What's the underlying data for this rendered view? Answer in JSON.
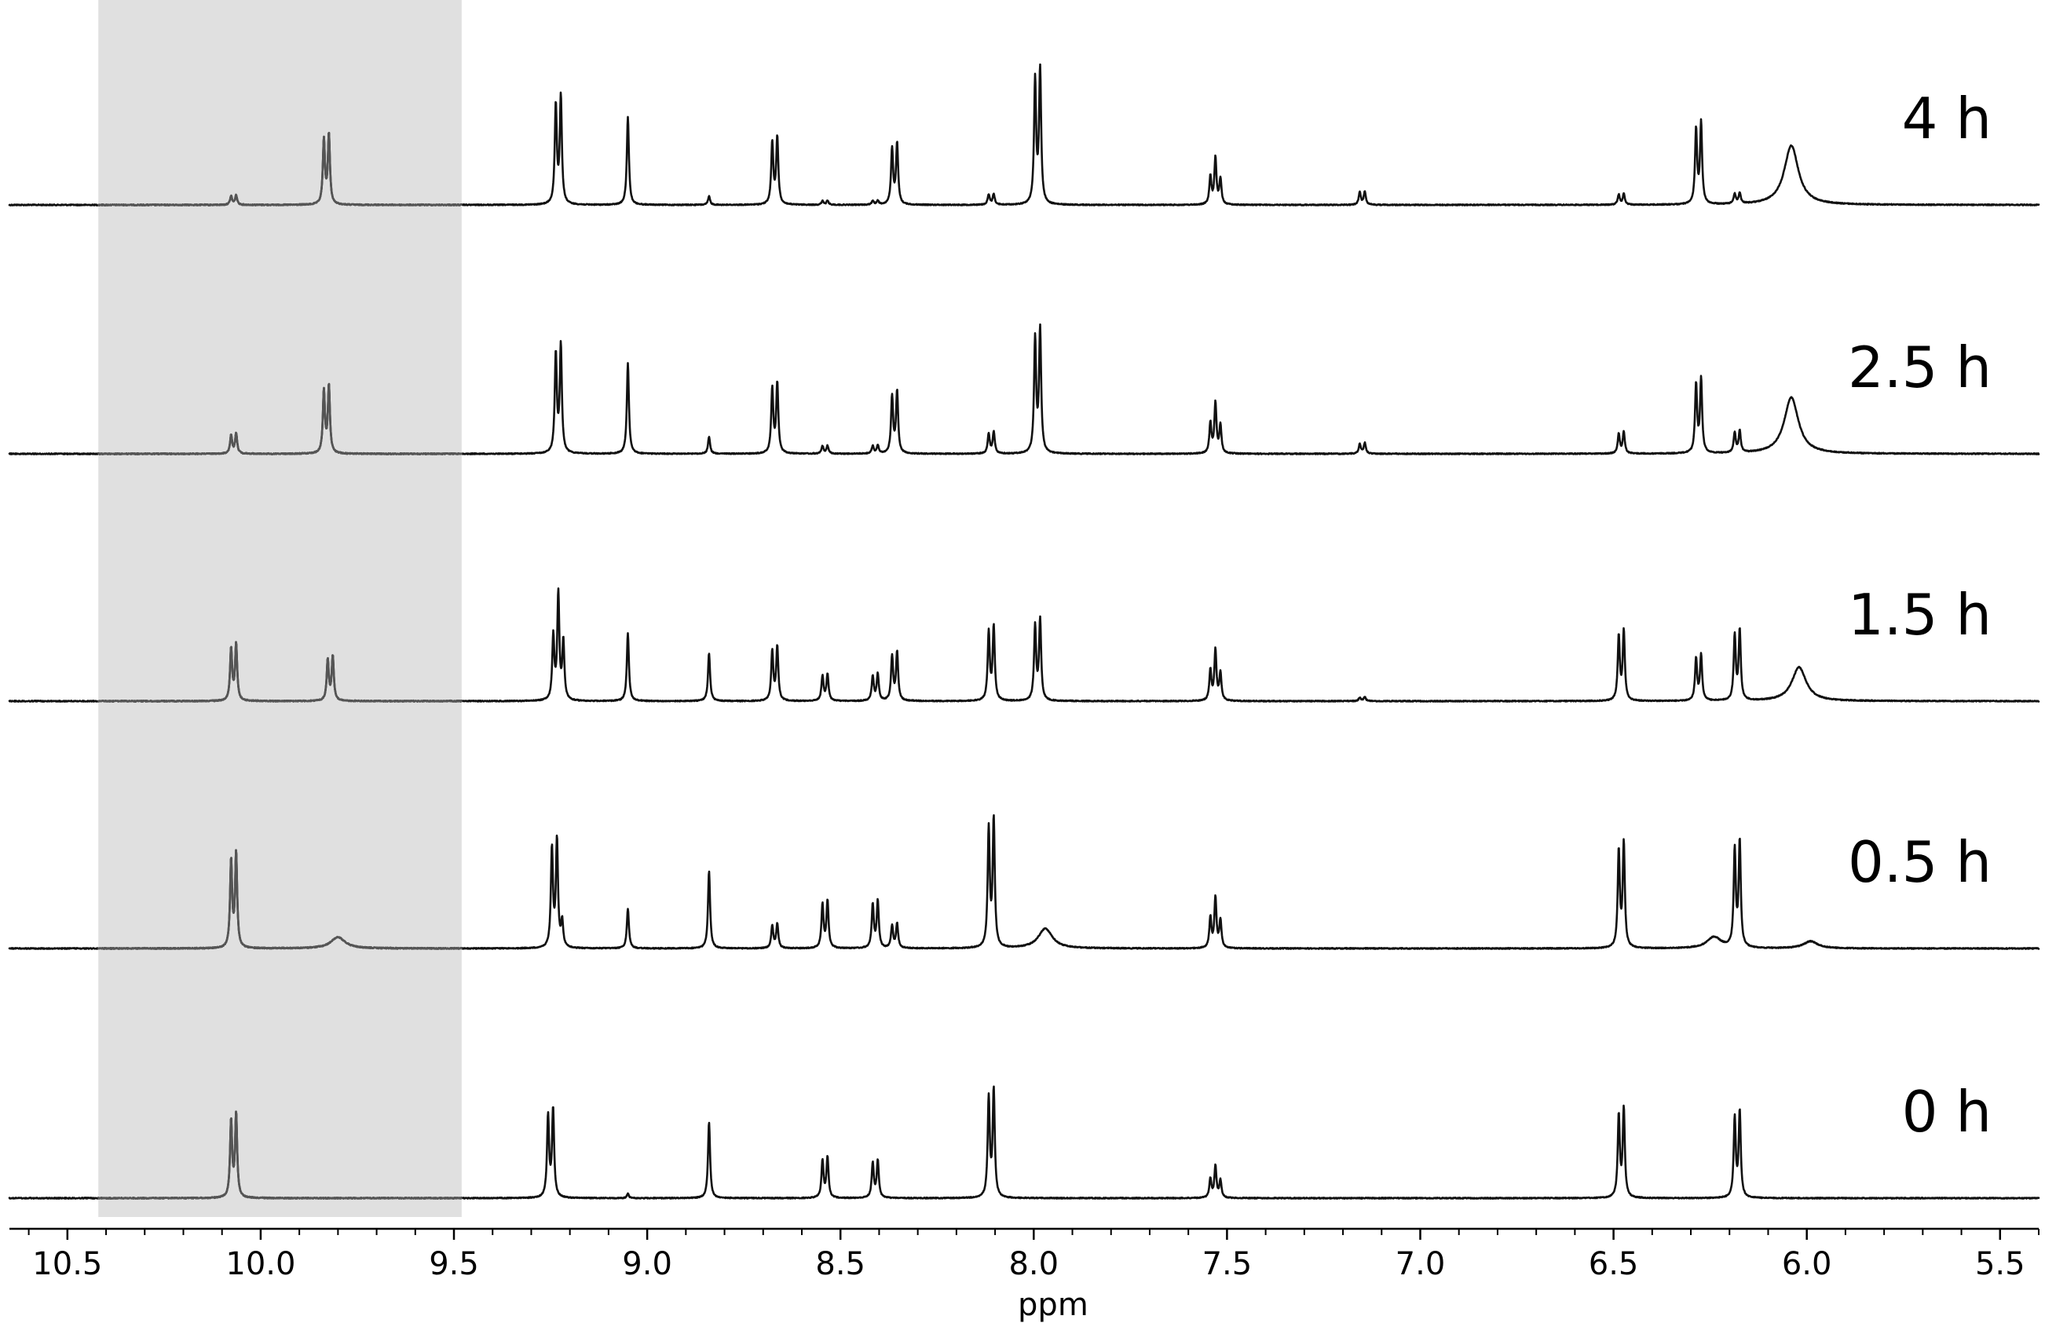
{
  "chart_data": {
    "type": "line",
    "title": "",
    "xlabel": "ppm",
    "ylabel": "",
    "xlim": [
      10.65,
      5.4
    ],
    "x_reversed": true,
    "x_ticks": [
      10.5,
      10.0,
      9.5,
      9.0,
      8.5,
      8.0,
      7.5,
      7.0,
      6.5,
      6.0,
      5.5
    ],
    "x_tick_labels": [
      "10.5",
      "10.0",
      "9.5",
      "9.0",
      "8.5",
      "8.0",
      "7.5",
      "7.0",
      "6.5",
      "6.0",
      "5.5"
    ],
    "grid": false,
    "legend": "none",
    "highlight_region": {
      "from_ppm": 10.42,
      "to_ppm": 9.48,
      "color": "#e0e0e0"
    },
    "trace_color": "#111111",
    "highlight_trace_color": "#555555",
    "series": [
      {
        "name": "4 h",
        "peaks": [
          {
            "ppm": 10.07,
            "height": 0.07,
            "type": "doublet"
          },
          {
            "ppm": 9.83,
            "height": 0.52,
            "type": "doublet"
          },
          {
            "ppm": 9.23,
            "height": 0.8,
            "type": "doublet"
          },
          {
            "ppm": 9.05,
            "height": 0.62,
            "type": "singlet"
          },
          {
            "ppm": 8.84,
            "height": 0.06,
            "type": "singlet"
          },
          {
            "ppm": 8.67,
            "height": 0.5,
            "type": "doublet"
          },
          {
            "ppm": 8.54,
            "height": 0.03,
            "type": "doublet"
          },
          {
            "ppm": 8.41,
            "height": 0.03,
            "type": "doublet"
          },
          {
            "ppm": 8.36,
            "height": 0.45,
            "type": "doublet"
          },
          {
            "ppm": 8.11,
            "height": 0.08,
            "type": "doublet"
          },
          {
            "ppm": 7.99,
            "height": 1.0,
            "type": "doublet"
          },
          {
            "ppm": 7.53,
            "height": 0.35,
            "type": "triplet"
          },
          {
            "ppm": 7.15,
            "height": 0.1,
            "type": "doublet"
          },
          {
            "ppm": 6.48,
            "height": 0.08,
            "type": "doublet"
          },
          {
            "ppm": 6.28,
            "height": 0.6,
            "type": "doublet"
          },
          {
            "ppm": 6.18,
            "height": 0.08,
            "type": "doublet"
          },
          {
            "ppm": 6.04,
            "height": 0.42,
            "type": "broad"
          }
        ]
      },
      {
        "name": "2.5 h",
        "peaks": [
          {
            "ppm": 10.07,
            "height": 0.15,
            "type": "doublet"
          },
          {
            "ppm": 9.83,
            "height": 0.5,
            "type": "doublet"
          },
          {
            "ppm": 9.23,
            "height": 0.8,
            "type": "doublet"
          },
          {
            "ppm": 9.05,
            "height": 0.64,
            "type": "singlet"
          },
          {
            "ppm": 8.84,
            "height": 0.12,
            "type": "singlet"
          },
          {
            "ppm": 8.67,
            "height": 0.52,
            "type": "doublet"
          },
          {
            "ppm": 8.54,
            "height": 0.06,
            "type": "doublet"
          },
          {
            "ppm": 8.41,
            "height": 0.06,
            "type": "doublet"
          },
          {
            "ppm": 8.36,
            "height": 0.46,
            "type": "doublet"
          },
          {
            "ppm": 8.11,
            "height": 0.16,
            "type": "doublet"
          },
          {
            "ppm": 7.99,
            "height": 0.92,
            "type": "doublet"
          },
          {
            "ppm": 7.53,
            "height": 0.38,
            "type": "triplet"
          },
          {
            "ppm": 7.15,
            "height": 0.08,
            "type": "doublet"
          },
          {
            "ppm": 6.48,
            "height": 0.16,
            "type": "doublet"
          },
          {
            "ppm": 6.28,
            "height": 0.55,
            "type": "doublet"
          },
          {
            "ppm": 6.18,
            "height": 0.16,
            "type": "doublet"
          },
          {
            "ppm": 6.04,
            "height": 0.4,
            "type": "broad"
          }
        ]
      },
      {
        "name": "1.5 h",
        "peaks": [
          {
            "ppm": 10.07,
            "height": 0.42,
            "type": "doublet"
          },
          {
            "ppm": 9.82,
            "height": 0.33,
            "type": "doublet"
          },
          {
            "ppm": 9.23,
            "height": 0.8,
            "type": "triplet"
          },
          {
            "ppm": 9.05,
            "height": 0.48,
            "type": "singlet"
          },
          {
            "ppm": 8.84,
            "height": 0.34,
            "type": "singlet"
          },
          {
            "ppm": 8.67,
            "height": 0.4,
            "type": "doublet"
          },
          {
            "ppm": 8.54,
            "height": 0.2,
            "type": "doublet"
          },
          {
            "ppm": 8.41,
            "height": 0.2,
            "type": "doublet"
          },
          {
            "ppm": 8.36,
            "height": 0.36,
            "type": "doublet"
          },
          {
            "ppm": 8.11,
            "height": 0.55,
            "type": "doublet"
          },
          {
            "ppm": 7.99,
            "height": 0.6,
            "type": "doublet"
          },
          {
            "ppm": 7.53,
            "height": 0.38,
            "type": "triplet"
          },
          {
            "ppm": 7.15,
            "height": 0.03,
            "type": "doublet"
          },
          {
            "ppm": 6.48,
            "height": 0.52,
            "type": "doublet"
          },
          {
            "ppm": 6.28,
            "height": 0.34,
            "type": "doublet"
          },
          {
            "ppm": 6.18,
            "height": 0.52,
            "type": "doublet"
          },
          {
            "ppm": 6.02,
            "height": 0.24,
            "type": "broad"
          }
        ]
      },
      {
        "name": "0.5 h",
        "peaks": [
          {
            "ppm": 10.07,
            "height": 0.7,
            "type": "doublet"
          },
          {
            "ppm": 9.8,
            "height": 0.08,
            "type": "broad"
          },
          {
            "ppm": 9.24,
            "height": 0.8,
            "type": "doublet"
          },
          {
            "ppm": 9.22,
            "height": 0.18,
            "type": "singlet"
          },
          {
            "ppm": 9.05,
            "height": 0.28,
            "type": "singlet"
          },
          {
            "ppm": 8.84,
            "height": 0.55,
            "type": "singlet"
          },
          {
            "ppm": 8.67,
            "height": 0.18,
            "type": "doublet"
          },
          {
            "ppm": 8.54,
            "height": 0.35,
            "type": "doublet"
          },
          {
            "ppm": 8.41,
            "height": 0.35,
            "type": "doublet"
          },
          {
            "ppm": 8.36,
            "height": 0.18,
            "type": "doublet"
          },
          {
            "ppm": 8.11,
            "height": 0.95,
            "type": "doublet"
          },
          {
            "ppm": 7.97,
            "height": 0.14,
            "type": "broad"
          },
          {
            "ppm": 7.53,
            "height": 0.38,
            "type": "triplet"
          },
          {
            "ppm": 6.48,
            "height": 0.78,
            "type": "doublet"
          },
          {
            "ppm": 6.24,
            "height": 0.08,
            "type": "broad"
          },
          {
            "ppm": 6.18,
            "height": 0.78,
            "type": "doublet"
          },
          {
            "ppm": 5.99,
            "height": 0.05,
            "type": "broad"
          }
        ]
      },
      {
        "name": "0 h",
        "peaks": [
          {
            "ppm": 10.07,
            "height": 0.62,
            "type": "doublet"
          },
          {
            "ppm": 9.25,
            "height": 0.66,
            "type": "doublet"
          },
          {
            "ppm": 9.05,
            "height": 0.03,
            "type": "singlet"
          },
          {
            "ppm": 8.84,
            "height": 0.54,
            "type": "singlet"
          },
          {
            "ppm": 8.54,
            "height": 0.3,
            "type": "doublet"
          },
          {
            "ppm": 8.41,
            "height": 0.28,
            "type": "doublet"
          },
          {
            "ppm": 8.11,
            "height": 0.8,
            "type": "doublet"
          },
          {
            "ppm": 7.53,
            "height": 0.24,
            "type": "triplet"
          },
          {
            "ppm": 6.48,
            "height": 0.66,
            "type": "doublet"
          },
          {
            "ppm": 6.18,
            "height": 0.64,
            "type": "doublet"
          }
        ]
      }
    ]
  }
}
